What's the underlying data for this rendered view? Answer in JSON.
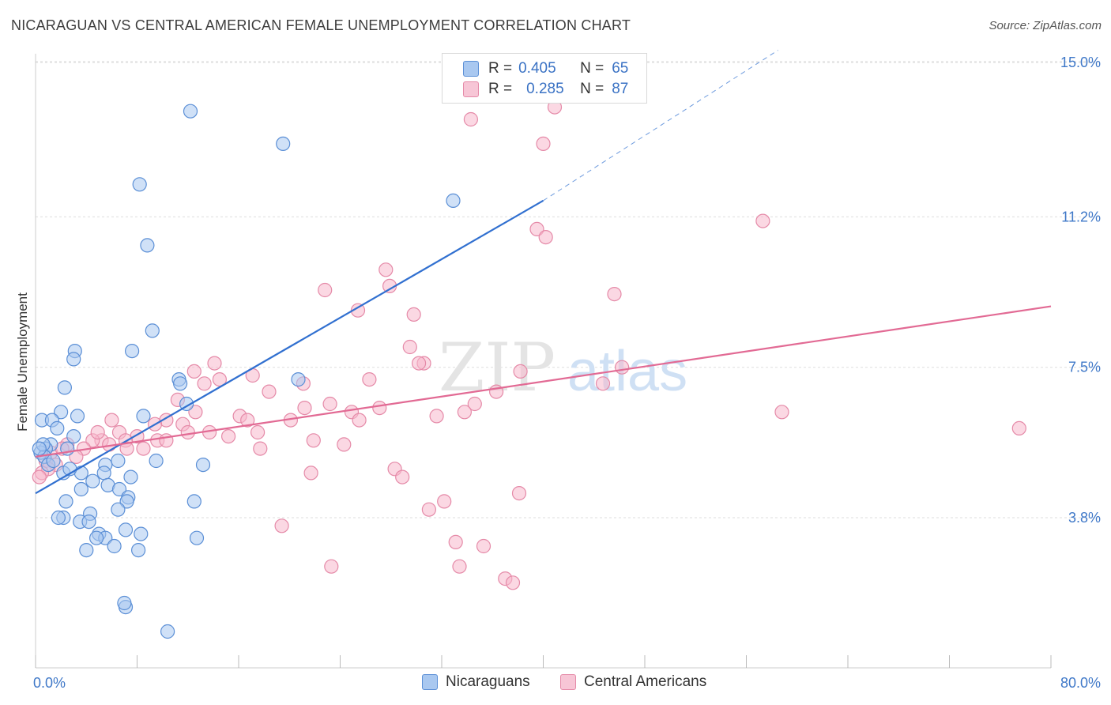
{
  "header": {
    "title": "NICARAGUAN VS CENTRAL AMERICAN FEMALE UNEMPLOYMENT CORRELATION CHART",
    "source": "Source: ZipAtlas.com"
  },
  "legend": {
    "rows": [
      {
        "r_label": "R =",
        "r_value": "0.405",
        "n_label": "N =",
        "n_value": "65"
      },
      {
        "r_label": "R =",
        "r_value": "0.285",
        "n_label": "N =",
        "n_value": "87"
      }
    ]
  },
  "bottom_legend": {
    "nicaraguans": "Nicaraguans",
    "central_americans": "Central Americans"
  },
  "watermark": {
    "zip": "ZIP",
    "atlas": "atlas"
  },
  "colors": {
    "blue_fill": "#a9c8f0",
    "blue_stroke": "#5b8fd6",
    "blue_line": "#3170d0",
    "pink_fill": "#f7b8cc",
    "pink_stroke": "#e58aa8",
    "pink_line": "#e26a94",
    "tick_text": "#3f78c8",
    "grid": "#dddddd"
  },
  "chart_data": {
    "type": "scatter",
    "title": "NICARAGUAN VS CENTRAL AMERICAN FEMALE UNEMPLOYMENT CORRELATION CHART",
    "xlabel": "",
    "ylabel": "Female Unemployment",
    "xlim": [
      0,
      80
    ],
    "ylim": [
      0,
      15.8
    ],
    "x_tick_labels": [
      "0.0%",
      "80.0%"
    ],
    "y_ticks": [
      3.8,
      7.5,
      11.2,
      15.0
    ],
    "y_tick_labels": [
      "3.8%",
      "7.5%",
      "11.2%",
      "15.0%"
    ],
    "series": [
      {
        "name": "Nicaraguans",
        "r": 0.405,
        "n": 65,
        "trend": {
          "x0": 0,
          "y0": 4.4,
          "x1": 40,
          "y1": 11.6,
          "dash_to_x": 58.5,
          "dash_to_y": 15.3
        },
        "points": [
          [
            12.2,
            13.8
          ],
          [
            19.5,
            13.0
          ],
          [
            8.2,
            12.0
          ],
          [
            32.9,
            11.6
          ],
          [
            8.8,
            10.5
          ],
          [
            9.2,
            8.4
          ],
          [
            7.6,
            7.9
          ],
          [
            3.1,
            7.9
          ],
          [
            3.0,
            7.7
          ],
          [
            2.3,
            7.0
          ],
          [
            11.3,
            7.2
          ],
          [
            11.4,
            7.1
          ],
          [
            20.7,
            7.2
          ],
          [
            11.9,
            6.6
          ],
          [
            2.0,
            6.4
          ],
          [
            3.3,
            6.3
          ],
          [
            0.5,
            6.2
          ],
          [
            1.3,
            6.2
          ],
          [
            1.7,
            6.0
          ],
          [
            8.5,
            6.3
          ],
          [
            3.0,
            5.8
          ],
          [
            1.2,
            5.6
          ],
          [
            0.8,
            5.5
          ],
          [
            0.4,
            5.4
          ],
          [
            0.7,
            5.3
          ],
          [
            1.0,
            5.1
          ],
          [
            0.6,
            5.6
          ],
          [
            2.5,
            5.5
          ],
          [
            5.5,
            5.1
          ],
          [
            6.5,
            5.2
          ],
          [
            9.5,
            5.2
          ],
          [
            13.2,
            5.1
          ],
          [
            2.2,
            4.9
          ],
          [
            3.6,
            4.9
          ],
          [
            5.4,
            4.9
          ],
          [
            4.5,
            4.7
          ],
          [
            5.7,
            4.6
          ],
          [
            7.5,
            4.8
          ],
          [
            3.6,
            4.5
          ],
          [
            6.6,
            4.5
          ],
          [
            7.3,
            4.3
          ],
          [
            2.4,
            4.2
          ],
          [
            7.2,
            4.2
          ],
          [
            6.5,
            4.0
          ],
          [
            12.5,
            4.2
          ],
          [
            4.3,
            3.9
          ],
          [
            3.5,
            3.7
          ],
          [
            4.2,
            3.7
          ],
          [
            2.2,
            3.8
          ],
          [
            1.8,
            3.8
          ],
          [
            5.0,
            3.4
          ],
          [
            5.5,
            3.3
          ],
          [
            4.8,
            3.3
          ],
          [
            7.1,
            3.5
          ],
          [
            8.3,
            3.4
          ],
          [
            6.2,
            3.1
          ],
          [
            12.7,
            3.3
          ],
          [
            4.0,
            3.0
          ],
          [
            8.1,
            3.0
          ],
          [
            7.1,
            1.6
          ],
          [
            7.0,
            1.7
          ],
          [
            10.4,
            1.0
          ],
          [
            0.3,
            5.5
          ],
          [
            1.4,
            5.2
          ],
          [
            2.7,
            5.0
          ]
        ]
      },
      {
        "name": "Central Americans",
        "r": 0.285,
        "n": 87,
        "trend": {
          "x0": 0,
          "y0": 5.3,
          "x1": 80,
          "y1": 9.0
        },
        "points": [
          [
            40.9,
            13.9
          ],
          [
            34.3,
            13.6
          ],
          [
            40.0,
            13.0
          ],
          [
            57.3,
            11.1
          ],
          [
            39.5,
            10.9
          ],
          [
            40.2,
            10.7
          ],
          [
            27.6,
            9.9
          ],
          [
            27.9,
            9.5
          ],
          [
            22.8,
            9.4
          ],
          [
            45.6,
            9.3
          ],
          [
            25.4,
            8.9
          ],
          [
            29.8,
            8.8
          ],
          [
            29.5,
            8.0
          ],
          [
            30.6,
            7.6
          ],
          [
            30.2,
            7.6
          ],
          [
            14.1,
            7.6
          ],
          [
            12.5,
            7.4
          ],
          [
            17.1,
            7.3
          ],
          [
            38.2,
            7.4
          ],
          [
            26.3,
            7.2
          ],
          [
            13.3,
            7.1
          ],
          [
            14.5,
            7.2
          ],
          [
            21.1,
            7.1
          ],
          [
            44.7,
            7.1
          ],
          [
            18.4,
            6.9
          ],
          [
            36.3,
            6.9
          ],
          [
            11.2,
            6.7
          ],
          [
            23.2,
            6.6
          ],
          [
            34.6,
            6.6
          ],
          [
            21.2,
            6.5
          ],
          [
            24.9,
            6.4
          ],
          [
            27.1,
            6.5
          ],
          [
            12.6,
            6.4
          ],
          [
            16.1,
            6.3
          ],
          [
            31.6,
            6.3
          ],
          [
            33.8,
            6.4
          ],
          [
            58.8,
            6.4
          ],
          [
            10.3,
            6.2
          ],
          [
            20.1,
            6.2
          ],
          [
            11.6,
            6.1
          ],
          [
            16.7,
            6.2
          ],
          [
            25.5,
            6.2
          ],
          [
            12.0,
            5.9
          ],
          [
            13.7,
            5.9
          ],
          [
            15.2,
            5.8
          ],
          [
            17.5,
            5.9
          ],
          [
            6.6,
            5.9
          ],
          [
            8.0,
            5.8
          ],
          [
            7.1,
            5.7
          ],
          [
            9.6,
            5.7
          ],
          [
            21.9,
            5.7
          ],
          [
            5.2,
            5.7
          ],
          [
            10.3,
            5.7
          ],
          [
            5.8,
            5.6
          ],
          [
            7.2,
            5.5
          ],
          [
            8.5,
            5.5
          ],
          [
            4.5,
            5.7
          ],
          [
            3.8,
            5.5
          ],
          [
            2.5,
            5.6
          ],
          [
            1.2,
            5.4
          ],
          [
            0.8,
            5.2
          ],
          [
            3.2,
            5.3
          ],
          [
            1.6,
            5.1
          ],
          [
            1.0,
            5.0
          ],
          [
            0.5,
            4.9
          ],
          [
            0.3,
            4.8
          ],
          [
            17.7,
            5.5
          ],
          [
            24.3,
            5.6
          ],
          [
            28.3,
            5.0
          ],
          [
            28.9,
            4.8
          ],
          [
            21.7,
            4.9
          ],
          [
            38.1,
            4.4
          ],
          [
            32.2,
            4.2
          ],
          [
            31.0,
            4.0
          ],
          [
            19.4,
            3.6
          ],
          [
            33.1,
            3.2
          ],
          [
            35.3,
            3.1
          ],
          [
            23.3,
            2.6
          ],
          [
            33.4,
            2.6
          ],
          [
            37.0,
            2.3
          ],
          [
            37.6,
            2.2
          ],
          [
            46.2,
            7.5
          ],
          [
            77.5,
            6.0
          ],
          [
            4.9,
            5.9
          ],
          [
            6.0,
            6.2
          ],
          [
            2.1,
            5.5
          ],
          [
            9.4,
            6.1
          ]
        ]
      }
    ]
  }
}
